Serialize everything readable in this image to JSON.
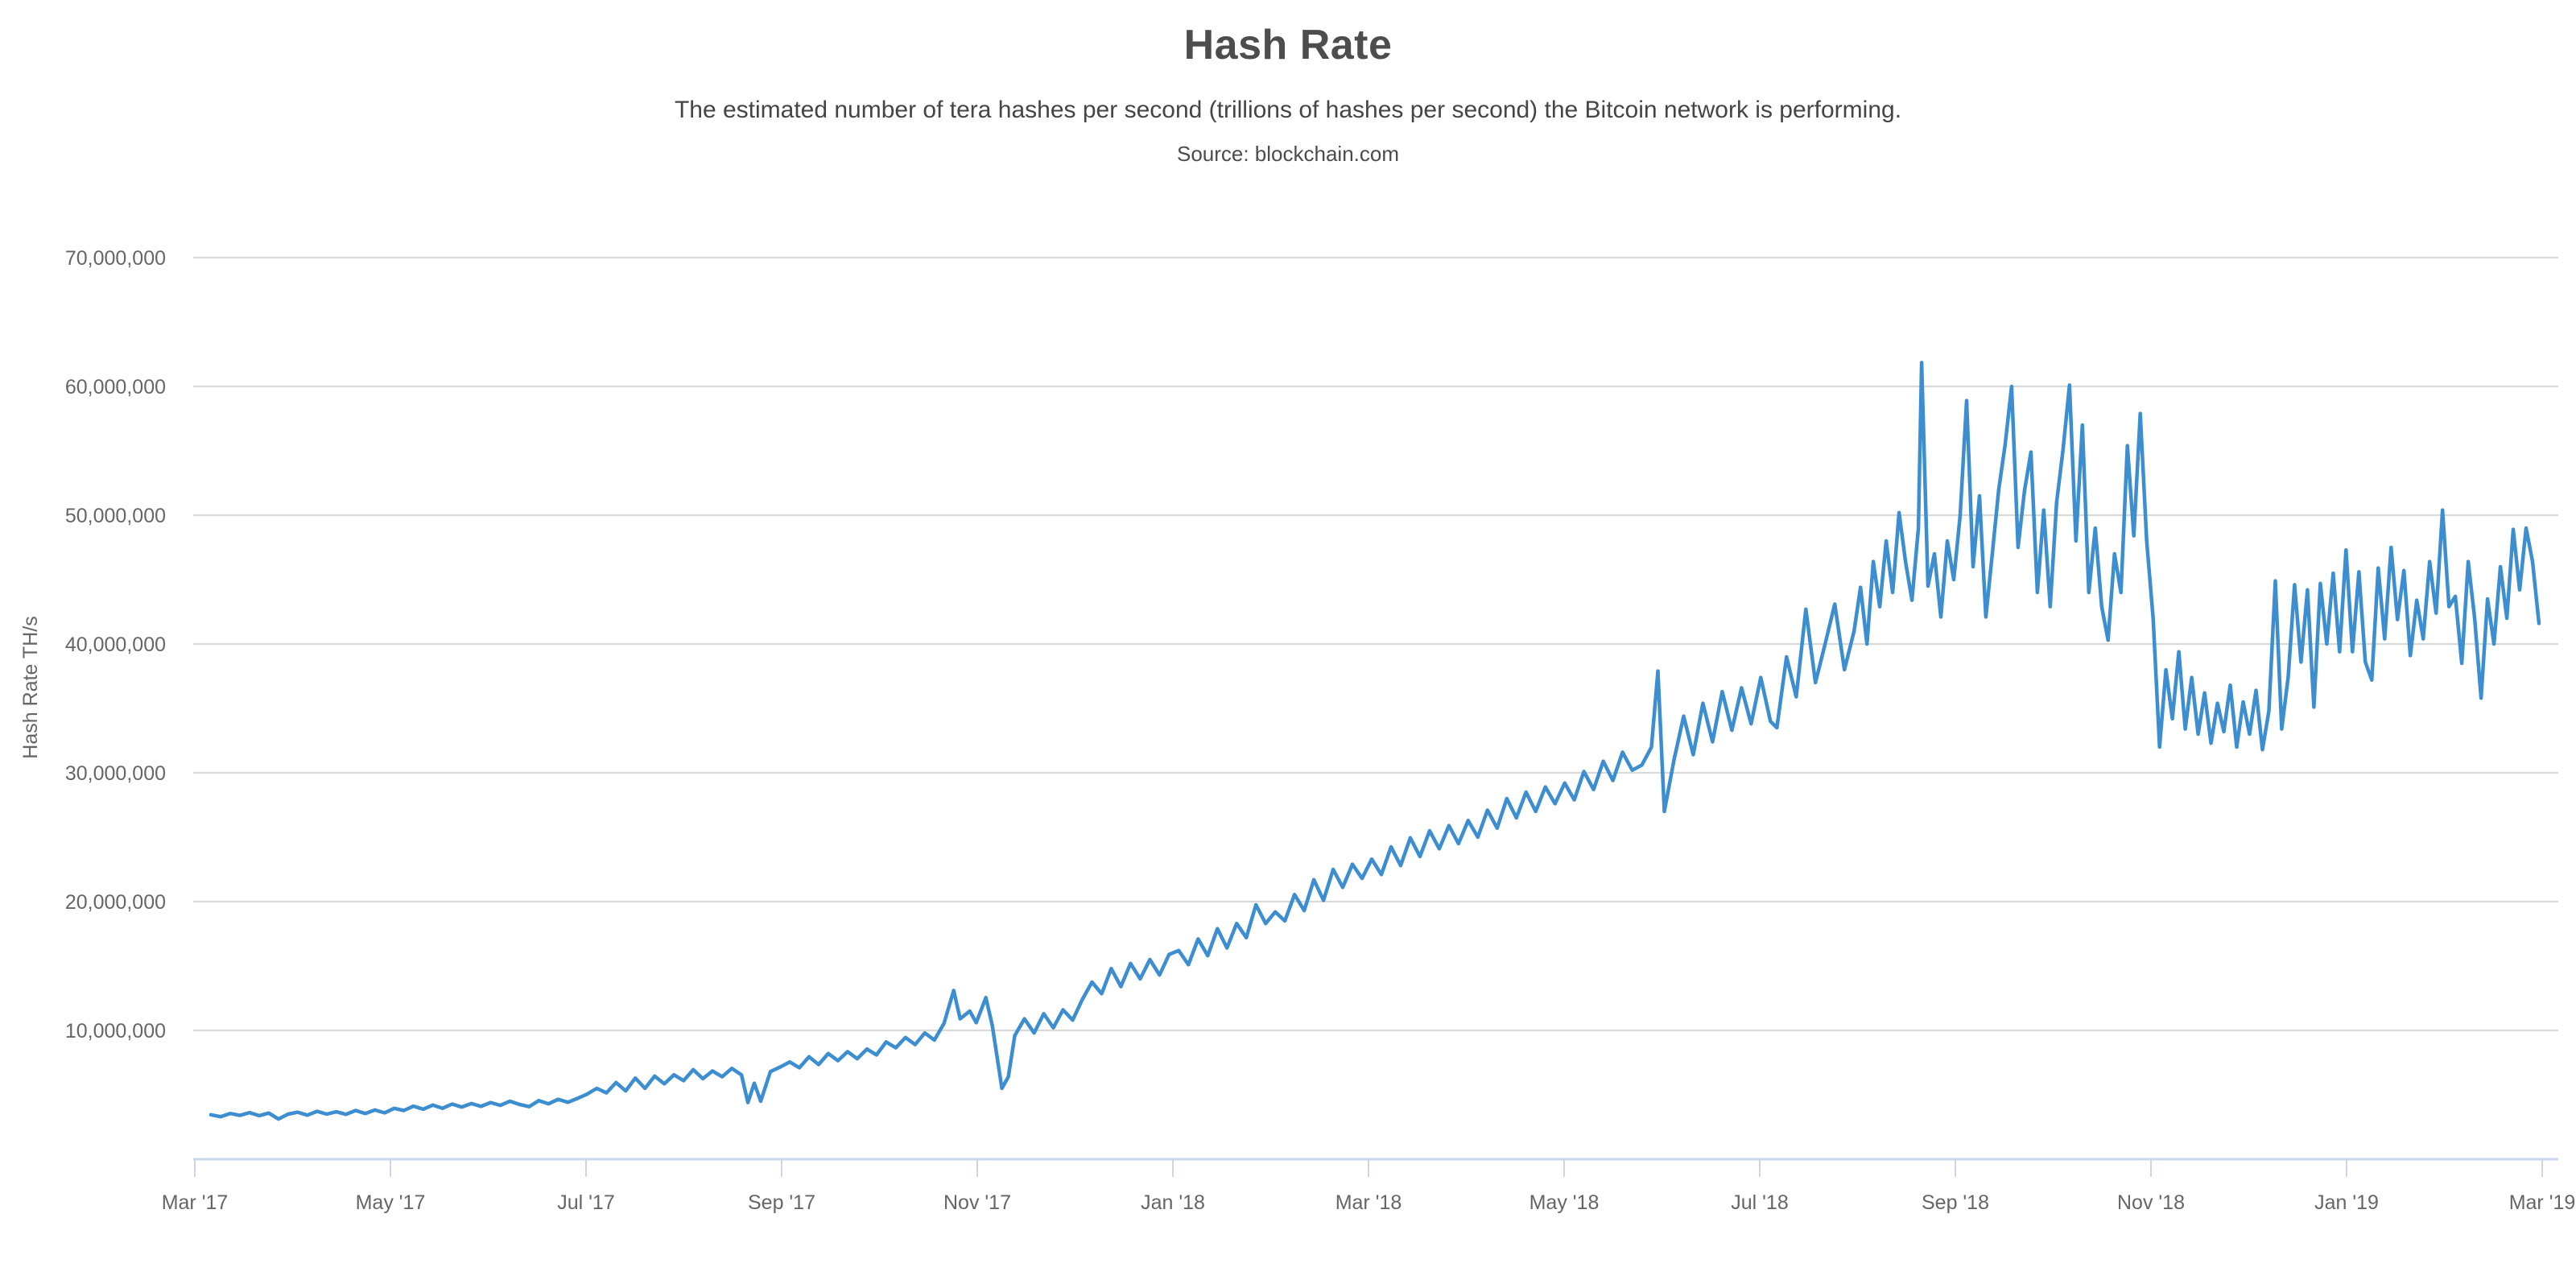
{
  "header": {
    "title": "Hash Rate",
    "subtitle": "The estimated number of tera hashes per second (trillions of hashes per second) the Bitcoin network is performing.",
    "source": "Source: blockchain.com"
  },
  "chart_data": {
    "type": "line",
    "title": "Hash Rate",
    "subtitle": "The estimated number of tera hashes per second (trillions of hashes per second) the Bitcoin network is performing.",
    "source": "Source: blockchain.com",
    "y_axis_title": "Hash Rate TH/s",
    "legend_position": "none",
    "grid": "horizontal",
    "colors": {
      "line": "#3d8ed0",
      "gridline": "#d8d8d8",
      "axis_line": "#ccd6eb",
      "tick_label": "#666666",
      "title_text": "#4d4d4f"
    },
    "x_range": [
      "Mar 2017",
      "Mar 2019"
    ],
    "x_tick_labels": [
      "Mar '17",
      "May '17",
      "Jul '17",
      "Sep '17",
      "Nov '17",
      "Jan '18",
      "Mar '18",
      "May '18",
      "Jul '18",
      "Sep '18",
      "Nov '18",
      "Jan '19",
      "Mar '19"
    ],
    "ylim_th_s": [
      0,
      73000000
    ],
    "y_ticks": [
      {
        "value_m": 10,
        "label": "10,000,000"
      },
      {
        "value_m": 20,
        "label": "20,000,000"
      },
      {
        "value_m": 30,
        "label": "30,000,000"
      },
      {
        "value_m": 40,
        "label": "40,000,000"
      },
      {
        "value_m": 50,
        "label": "50,000,000"
      },
      {
        "value_m": 60,
        "label": "60,000,000"
      },
      {
        "value_m": 70,
        "label": "70,000,000"
      }
    ],
    "point_x_unit": "days since 2017-03-01",
    "point_value_unit": "million TH/s (multiply by 1,000,000 for TH/s)",
    "series": [
      {
        "name": "Hash Rate",
        "points": [
          [
            5,
            3.45
          ],
          [
            8,
            3.3
          ],
          [
            11,
            3.55
          ],
          [
            14,
            3.4
          ],
          [
            17,
            3.62
          ],
          [
            20,
            3.38
          ],
          [
            23,
            3.58
          ],
          [
            26,
            3.12
          ],
          [
            29,
            3.5
          ],
          [
            32,
            3.65
          ],
          [
            35,
            3.42
          ],
          [
            38,
            3.72
          ],
          [
            41,
            3.5
          ],
          [
            44,
            3.68
          ],
          [
            47,
            3.48
          ],
          [
            50,
            3.78
          ],
          [
            53,
            3.55
          ],
          [
            56,
            3.82
          ],
          [
            59,
            3.6
          ],
          [
            62,
            3.95
          ],
          [
            65,
            3.78
          ],
          [
            68,
            4.12
          ],
          [
            71,
            3.88
          ],
          [
            74,
            4.2
          ],
          [
            77,
            3.95
          ],
          [
            80,
            4.28
          ],
          [
            83,
            4.05
          ],
          [
            86,
            4.32
          ],
          [
            89,
            4.1
          ],
          [
            92,
            4.4
          ],
          [
            95,
            4.18
          ],
          [
            98,
            4.5
          ],
          [
            101,
            4.25
          ],
          [
            104,
            4.08
          ],
          [
            107,
            4.55
          ],
          [
            110,
            4.3
          ],
          [
            113,
            4.65
          ],
          [
            116,
            4.42
          ],
          [
            119,
            4.72
          ],
          [
            122,
            5.05
          ],
          [
            125,
            5.5
          ],
          [
            128,
            5.15
          ],
          [
            131,
            5.95
          ],
          [
            134,
            5.3
          ],
          [
            137,
            6.3
          ],
          [
            140,
            5.5
          ],
          [
            143,
            6.45
          ],
          [
            146,
            5.85
          ],
          [
            149,
            6.55
          ],
          [
            152,
            6.1
          ],
          [
            155,
            6.95
          ],
          [
            158,
            6.25
          ],
          [
            161,
            6.85
          ],
          [
            164,
            6.4
          ],
          [
            167,
            7.05
          ],
          [
            170,
            6.55
          ],
          [
            172,
            4.4
          ],
          [
            174,
            5.9
          ],
          [
            176,
            4.5
          ],
          [
            179,
            6.8
          ],
          [
            182,
            7.15
          ],
          [
            185,
            7.55
          ],
          [
            188,
            7.1
          ],
          [
            191,
            7.95
          ],
          [
            194,
            7.35
          ],
          [
            197,
            8.2
          ],
          [
            200,
            7.65
          ],
          [
            203,
            8.35
          ],
          [
            206,
            7.8
          ],
          [
            209,
            8.55
          ],
          [
            212,
            8.1
          ],
          [
            215,
            9.1
          ],
          [
            218,
            8.65
          ],
          [
            221,
            9.45
          ],
          [
            224,
            8.9
          ],
          [
            227,
            9.8
          ],
          [
            230,
            9.25
          ],
          [
            233,
            10.55
          ],
          [
            236,
            13.1
          ],
          [
            238,
            10.9
          ],
          [
            241,
            11.5
          ],
          [
            243,
            10.6
          ],
          [
            246,
            12.55
          ],
          [
            248,
            10.4
          ],
          [
            251,
            5.5
          ],
          [
            253,
            6.4
          ],
          [
            255,
            9.6
          ],
          [
            258,
            10.9
          ],
          [
            261,
            9.8
          ],
          [
            264,
            11.3
          ],
          [
            267,
            10.2
          ],
          [
            270,
            11.6
          ],
          [
            273,
            10.8
          ],
          [
            276,
            12.4
          ],
          [
            279,
            13.75
          ],
          [
            282,
            12.85
          ],
          [
            285,
            14.8
          ],
          [
            288,
            13.4
          ],
          [
            291,
            15.2
          ],
          [
            294,
            14.0
          ],
          [
            297,
            15.5
          ],
          [
            300,
            14.3
          ],
          [
            303,
            15.9
          ],
          [
            306,
            16.2
          ],
          [
            309,
            15.1
          ],
          [
            312,
            17.1
          ],
          [
            315,
            15.8
          ],
          [
            318,
            17.9
          ],
          [
            321,
            16.4
          ],
          [
            324,
            18.3
          ],
          [
            327,
            17.2
          ],
          [
            330,
            19.75
          ],
          [
            333,
            18.3
          ],
          [
            336,
            19.2
          ],
          [
            339,
            18.5
          ],
          [
            342,
            20.55
          ],
          [
            345,
            19.3
          ],
          [
            348,
            21.7
          ],
          [
            351,
            20.1
          ],
          [
            354,
            22.5
          ],
          [
            357,
            21.1
          ],
          [
            360,
            22.9
          ],
          [
            363,
            21.8
          ],
          [
            366,
            23.3
          ],
          [
            369,
            22.1
          ],
          [
            372,
            24.25
          ],
          [
            375,
            22.8
          ],
          [
            378,
            24.95
          ],
          [
            381,
            23.5
          ],
          [
            384,
            25.5
          ],
          [
            387,
            24.1
          ],
          [
            390,
            25.9
          ],
          [
            393,
            24.5
          ],
          [
            396,
            26.3
          ],
          [
            399,
            25.0
          ],
          [
            402,
            27.1
          ],
          [
            405,
            25.7
          ],
          [
            408,
            28.0
          ],
          [
            411,
            26.5
          ],
          [
            414,
            28.5
          ],
          [
            417,
            27.0
          ],
          [
            420,
            28.9
          ],
          [
            423,
            27.6
          ],
          [
            426,
            29.2
          ],
          [
            429,
            27.9
          ],
          [
            432,
            30.1
          ],
          [
            435,
            28.7
          ],
          [
            438,
            30.9
          ],
          [
            441,
            29.4
          ],
          [
            444,
            31.6
          ],
          [
            447,
            30.2
          ],
          [
            450,
            30.6
          ],
          [
            453,
            32.0
          ],
          [
            455,
            37.9
          ],
          [
            457,
            27.0
          ],
          [
            460,
            31.0
          ],
          [
            463,
            34.4
          ],
          [
            466,
            31.4
          ],
          [
            469,
            35.4
          ],
          [
            472,
            32.4
          ],
          [
            475,
            36.3
          ],
          [
            478,
            33.3
          ],
          [
            481,
            36.6
          ],
          [
            484,
            33.8
          ],
          [
            487,
            37.4
          ],
          [
            490,
            34.0
          ],
          [
            492,
            33.5
          ],
          [
            495,
            39.0
          ],
          [
            498,
            35.9
          ],
          [
            501,
            42.7
          ],
          [
            504,
            37.0
          ],
          [
            507,
            40.0
          ],
          [
            510,
            43.1
          ],
          [
            513,
            38.0
          ],
          [
            516,
            41.0
          ],
          [
            518,
            44.4
          ],
          [
            520,
            40.0
          ],
          [
            522,
            46.4
          ],
          [
            524,
            42.9
          ],
          [
            526,
            48.0
          ],
          [
            528,
            44.0
          ],
          [
            530,
            50.2
          ],
          [
            532,
            46.4
          ],
          [
            534,
            43.4
          ],
          [
            536,
            49.0
          ],
          [
            537,
            61.85
          ],
          [
            539,
            44.5
          ],
          [
            541,
            47.0
          ],
          [
            543,
            42.1
          ],
          [
            545,
            48.0
          ],
          [
            547,
            45.0
          ],
          [
            549,
            50.0
          ],
          [
            551,
            58.9
          ],
          [
            553,
            46.0
          ],
          [
            555,
            51.5
          ],
          [
            557,
            42.1
          ],
          [
            559,
            47.0
          ],
          [
            561,
            52.0
          ],
          [
            563,
            55.5
          ],
          [
            565,
            60.0
          ],
          [
            567,
            47.5
          ],
          [
            569,
            51.9
          ],
          [
            571,
            54.9
          ],
          [
            573,
            44.0
          ],
          [
            575,
            50.4
          ],
          [
            577,
            42.9
          ],
          [
            579,
            51.0
          ],
          [
            581,
            55.1
          ],
          [
            583,
            60.1
          ],
          [
            585,
            48.0
          ],
          [
            587,
            57.0
          ],
          [
            589,
            44.0
          ],
          [
            591,
            49.0
          ],
          [
            593,
            42.9
          ],
          [
            595,
            40.3
          ],
          [
            597,
            47.0
          ],
          [
            599,
            44.0
          ],
          [
            601,
            55.4
          ],
          [
            603,
            48.4
          ],
          [
            605,
            57.9
          ],
          [
            607,
            48.0
          ],
          [
            609,
            42.0
          ],
          [
            611,
            32.0
          ],
          [
            613,
            38.0
          ],
          [
            615,
            34.2
          ],
          [
            617,
            39.4
          ],
          [
            619,
            33.4
          ],
          [
            621,
            37.4
          ],
          [
            623,
            33.0
          ],
          [
            625,
            36.2
          ],
          [
            627,
            32.3
          ],
          [
            629,
            35.4
          ],
          [
            631,
            33.2
          ],
          [
            633,
            36.8
          ],
          [
            635,
            32.0
          ],
          [
            637,
            35.5
          ],
          [
            639,
            33.0
          ],
          [
            641,
            36.4
          ],
          [
            643,
            31.8
          ],
          [
            645,
            34.8
          ],
          [
            647,
            44.9
          ],
          [
            649,
            33.4
          ],
          [
            651,
            37.4
          ],
          [
            653,
            44.6
          ],
          [
            655,
            38.6
          ],
          [
            657,
            44.2
          ],
          [
            659,
            35.1
          ],
          [
            661,
            44.7
          ],
          [
            663,
            40.0
          ],
          [
            665,
            45.5
          ],
          [
            667,
            39.4
          ],
          [
            669,
            47.3
          ],
          [
            671,
            39.4
          ],
          [
            673,
            45.6
          ],
          [
            675,
            38.6
          ],
          [
            677,
            37.2
          ],
          [
            679,
            45.9
          ],
          [
            681,
            40.4
          ],
          [
            683,
            47.5
          ],
          [
            685,
            41.9
          ],
          [
            687,
            45.7
          ],
          [
            689,
            39.1
          ],
          [
            691,
            43.4
          ],
          [
            693,
            40.4
          ],
          [
            695,
            46.4
          ],
          [
            697,
            42.4
          ],
          [
            699,
            50.4
          ],
          [
            701,
            42.9
          ],
          [
            703,
            43.7
          ],
          [
            705,
            38.5
          ],
          [
            707,
            46.4
          ],
          [
            709,
            42.0
          ],
          [
            711,
            35.8
          ],
          [
            713,
            43.5
          ],
          [
            715,
            40.0
          ],
          [
            717,
            46.0
          ],
          [
            719,
            42.0
          ],
          [
            721,
            48.9
          ],
          [
            723,
            44.2
          ],
          [
            725,
            49.0
          ],
          [
            727,
            46.4
          ],
          [
            729,
            41.6
          ]
        ]
      }
    ]
  }
}
